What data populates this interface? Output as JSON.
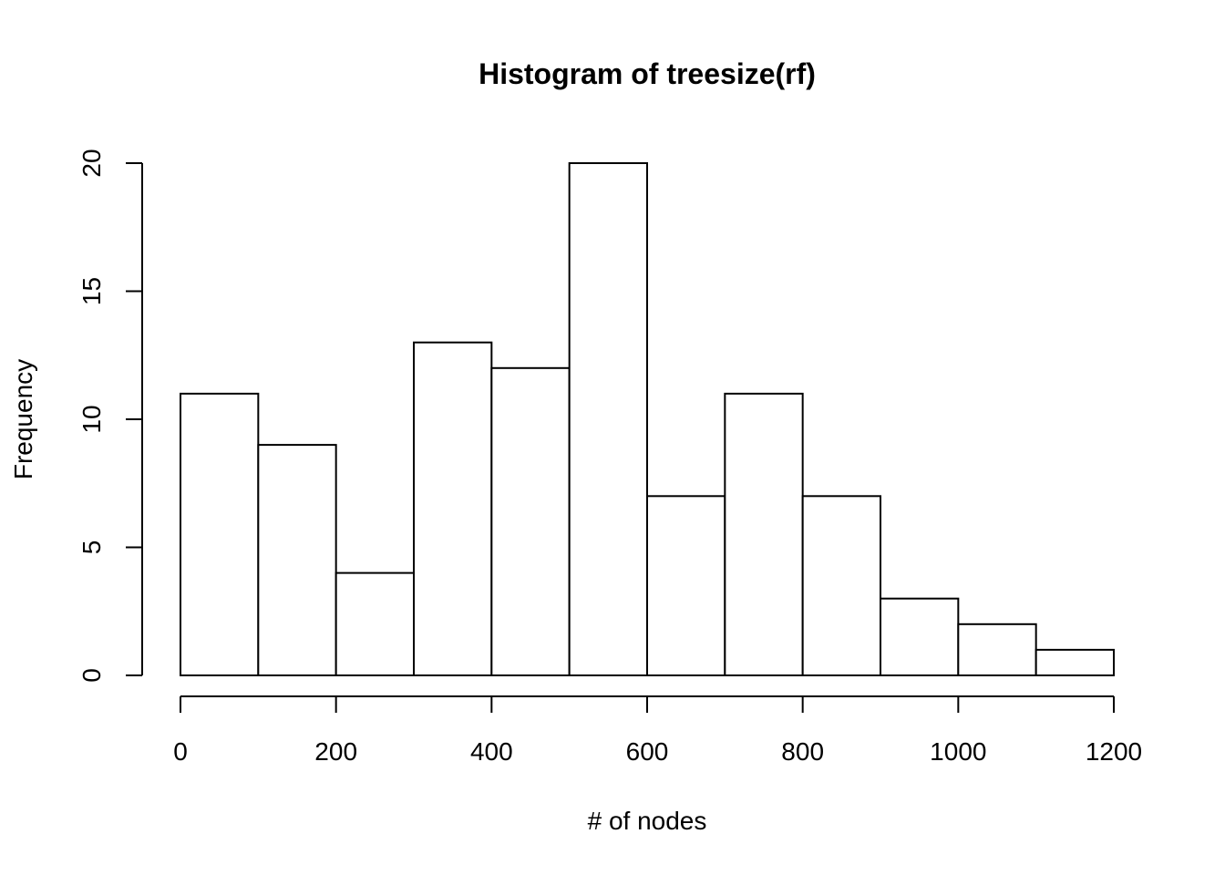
{
  "chart_data": {
    "type": "bar",
    "title": "Histogram of treesize(rf)",
    "xlabel": "# of nodes",
    "ylabel": "Frequency",
    "bin_edges": [
      0,
      100,
      200,
      300,
      400,
      500,
      600,
      700,
      800,
      900,
      1000,
      1100,
      1200
    ],
    "values": [
      11,
      9,
      4,
      13,
      12,
      20,
      7,
      11,
      7,
      3,
      2,
      1
    ],
    "xlim": [
      0,
      1200
    ],
    "ylim": [
      0,
      20
    ],
    "x_ticks": [
      0,
      200,
      400,
      600,
      800,
      1000,
      1200
    ],
    "x_tick_labels": [
      "0",
      "200",
      "400",
      "600",
      "800",
      "1000",
      "1200"
    ],
    "y_ticks": [
      0,
      5,
      10,
      15,
      20
    ],
    "y_tick_labels": [
      "0",
      "5",
      "10",
      "15",
      "20"
    ],
    "grid": false,
    "legend": "none",
    "bar_fill": "#ffffff",
    "bar_stroke": "#000000"
  }
}
